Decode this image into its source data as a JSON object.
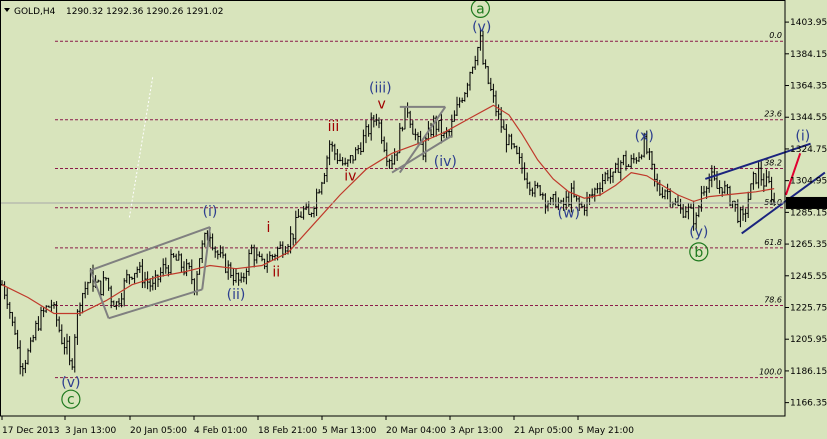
{
  "header": {
    "symbol": "GOLD,H4",
    "ohlc": "1290.32 1292.36 1290.26 1291.02"
  },
  "current_price": "1291.02",
  "colors": {
    "background": "#d8e4bc",
    "candles": "#000000",
    "moving_average": "#c0392b",
    "fib_lines": "#8b1a4a",
    "wave_blue": "#2c3e8f",
    "wave_red": "#a00000",
    "wave_green": "#1f7a1f",
    "channel_gray": "#808080",
    "triangle_blue": "#1a237e",
    "projection_red": "#e00030",
    "price_marker": "#000000"
  },
  "chart_data": {
    "type": "candlestick",
    "instrument": "GOLD",
    "timeframe": "H4",
    "yaxis": {
      "ylim": [
        1158,
        1414
      ],
      "ticks": [
        "1403.95",
        "1384.15",
        "1364.35",
        "1344.55",
        "1324.75",
        "1304.95",
        "1285.15",
        "1265.35",
        "1245.55",
        "1225.75",
        "1205.95",
        "1186.15",
        "1166.35"
      ]
    },
    "xaxis": {
      "ticks": [
        "17 Dec 2013",
        "3 Jan 13:00",
        "20 Jan 05:00",
        "4 Feb 01:00",
        "18 Feb 21:00",
        "5 Mar 13:00",
        "20 Mar 04:00",
        "3 Apr 13:00",
        "21 Apr 05:00",
        "5 May 21:00"
      ]
    },
    "fibonacci_levels": [
      {
        "label": "0.0",
        "price": 1392
      },
      {
        "label": "23.6",
        "price": 1343
      },
      {
        "label": "38.2",
        "price": 1312.5
      },
      {
        "label": "50.0",
        "price": 1288
      },
      {
        "label": "61.8",
        "price": 1263
      },
      {
        "label": "78.6",
        "price": 1227
      },
      {
        "label": "100.0",
        "price": 1182
      }
    ],
    "price_path": [
      [
        0,
        1240
      ],
      [
        4,
        1232
      ],
      [
        8,
        1215
      ],
      [
        10,
        1212
      ],
      [
        12,
        1200
      ],
      [
        15,
        1190
      ],
      [
        18,
        1194
      ],
      [
        22,
        1200
      ],
      [
        26,
        1213
      ],
      [
        30,
        1220
      ],
      [
        34,
        1225
      ],
      [
        38,
        1228
      ],
      [
        42,
        1218
      ],
      [
        46,
        1206
      ],
      [
        50,
        1200
      ],
      [
        53,
        1185
      ],
      [
        56,
        1210
      ],
      [
        60,
        1232
      ],
      [
        64,
        1238
      ],
      [
        68,
        1245
      ],
      [
        72,
        1240
      ],
      [
        76,
        1238
      ],
      [
        80,
        1244
      ],
      [
        84,
        1232
      ],
      [
        88,
        1228
      ],
      [
        92,
        1236
      ],
      [
        96,
        1244
      ],
      [
        100,
        1248
      ],
      [
        104,
        1250
      ],
      [
        108,
        1245
      ],
      [
        112,
        1242
      ],
      [
        116,
        1238
      ],
      [
        120,
        1244
      ],
      [
        124,
        1250
      ],
      [
        128,
        1252
      ],
      [
        132,
        1256
      ],
      [
        136,
        1254
      ],
      [
        140,
        1250
      ],
      [
        144,
        1248
      ],
      [
        148,
        1240
      ],
      [
        152,
        1258
      ],
      [
        156,
        1268
      ],
      [
        160,
        1273
      ],
      [
        164,
        1262
      ],
      [
        168,
        1256
      ],
      [
        172,
        1252
      ],
      [
        176,
        1248
      ],
      [
        180,
        1244
      ],
      [
        184,
        1240
      ],
      [
        188,
        1252
      ],
      [
        192,
        1262
      ],
      [
        196,
        1256
      ],
      [
        200,
        1252
      ],
      [
        204,
        1256
      ],
      [
        208,
        1258
      ],
      [
        212,
        1262
      ],
      [
        216,
        1264
      ],
      [
        220,
        1268
      ],
      [
        224,
        1272
      ],
      [
        228,
        1282
      ],
      [
        232,
        1286
      ],
      [
        236,
        1282
      ],
      [
        240,
        1292
      ],
      [
        244,
        1302
      ],
      [
        248,
        1312
      ],
      [
        252,
        1328
      ],
      [
        256,
        1322
      ],
      [
        260,
        1318
      ],
      [
        264,
        1313
      ],
      [
        268,
        1318
      ],
      [
        272,
        1322
      ],
      [
        276,
        1328
      ],
      [
        280,
        1334
      ],
      [
        284,
        1340
      ],
      [
        288,
        1346
      ],
      [
        292,
        1334
      ],
      [
        296,
        1322
      ],
      [
        300,
        1318
      ],
      [
        304,
        1326
      ],
      [
        308,
        1342
      ],
      [
        312,
        1350
      ],
      [
        316,
        1338
      ],
      [
        320,
        1328
      ],
      [
        324,
        1324
      ],
      [
        328,
        1333
      ],
      [
        332,
        1341
      ],
      [
        336,
        1338
      ],
      [
        340,
        1332
      ],
      [
        344,
        1335
      ],
      [
        348,
        1344
      ],
      [
        352,
        1355
      ],
      [
        356,
        1362
      ],
      [
        360,
        1374
      ],
      [
        364,
        1384
      ],
      [
        368,
        1392
      ],
      [
        370,
        1378
      ],
      [
        374,
        1366
      ],
      [
        378,
        1355
      ],
      [
        382,
        1344
      ],
      [
        386,
        1335
      ],
      [
        390,
        1328
      ],
      [
        394,
        1322
      ],
      [
        398,
        1316
      ],
      [
        402,
        1310
      ],
      [
        406,
        1304
      ],
      [
        410,
        1298
      ],
      [
        414,
        1300
      ],
      [
        418,
        1294
      ],
      [
        422,
        1290
      ],
      [
        426,
        1293
      ],
      [
        430,
        1288
      ],
      [
        434,
        1292
      ],
      [
        438,
        1296
      ],
      [
        442,
        1291
      ],
      [
        446,
        1288
      ],
      [
        450,
        1292
      ],
      [
        454,
        1296
      ],
      [
        458,
        1302
      ],
      [
        462,
        1306
      ],
      [
        466,
        1310
      ],
      [
        470,
        1306
      ],
      [
        474,
        1315
      ],
      [
        478,
        1318
      ],
      [
        482,
        1314
      ],
      [
        486,
        1318
      ],
      [
        490,
        1322
      ],
      [
        494,
        1328
      ],
      [
        498,
        1318
      ],
      [
        502,
        1304
      ],
      [
        506,
        1298
      ],
      [
        510,
        1300
      ],
      [
        514,
        1296
      ],
      [
        518,
        1290
      ],
      [
        522,
        1286
      ],
      [
        526,
        1288
      ],
      [
        530,
        1284
      ],
      [
        534,
        1280
      ],
      [
        538,
        1298
      ],
      [
        542,
        1305
      ],
      [
        546,
        1306
      ],
      [
        550,
        1300
      ],
      [
        554,
        1302
      ],
      [
        558,
        1296
      ],
      [
        562,
        1292
      ],
      [
        566,
        1284
      ],
      [
        570,
        1280
      ],
      [
        574,
        1294
      ],
      [
        578,
        1305
      ],
      [
        582,
        1310
      ],
      [
        586,
        1304
      ],
      [
        590,
        1302
      ],
      [
        594,
        1291
      ]
    ],
    "moving_average": [
      [
        0,
        1240
      ],
      [
        20,
        1232
      ],
      [
        40,
        1222
      ],
      [
        60,
        1222
      ],
      [
        80,
        1230
      ],
      [
        100,
        1240
      ],
      [
        120,
        1245
      ],
      [
        140,
        1248
      ],
      [
        160,
        1252
      ],
      [
        180,
        1250
      ],
      [
        200,
        1252
      ],
      [
        220,
        1260
      ],
      [
        240,
        1278
      ],
      [
        260,
        1296
      ],
      [
        280,
        1312
      ],
      [
        300,
        1322
      ],
      [
        320,
        1328
      ],
      [
        340,
        1335
      ],
      [
        360,
        1344
      ],
      [
        378,
        1352
      ],
      [
        390,
        1346
      ],
      [
        400,
        1334
      ],
      [
        412,
        1318
      ],
      [
        424,
        1306
      ],
      [
        436,
        1298
      ],
      [
        448,
        1294
      ],
      [
        460,
        1296
      ],
      [
        472,
        1302
      ],
      [
        484,
        1310
      ],
      [
        496,
        1308
      ],
      [
        508,
        1302
      ],
      [
        520,
        1296
      ],
      [
        532,
        1292
      ],
      [
        544,
        1295
      ],
      [
        556,
        1296
      ],
      [
        568,
        1297
      ],
      [
        580,
        1298
      ],
      [
        594,
        1300
      ]
    ],
    "wave_labels": [
      {
        "text": "(v)",
        "group": "blue",
        "bar": 53,
        "price": 1176,
        "pos": "below"
      },
      {
        "text": "c",
        "group": "green-circle",
        "bar": 53,
        "price": 1166,
        "pos": "below"
      },
      {
        "text": "(i)",
        "group": "blue",
        "bar": 160,
        "price": 1283,
        "pos": "above"
      },
      {
        "text": "(ii)",
        "group": "blue",
        "bar": 180,
        "price": 1231,
        "pos": "below"
      },
      {
        "text": "i",
        "group": "red",
        "bar": 205,
        "price": 1273,
        "pos": "above"
      },
      {
        "text": "ii",
        "group": "red",
        "bar": 211,
        "price": 1245,
        "pos": "below"
      },
      {
        "text": "iii",
        "group": "red",
        "bar": 255,
        "price": 1336,
        "pos": "above"
      },
      {
        "text": "iv",
        "group": "red",
        "bar": 268,
        "price": 1305,
        "pos": "below"
      },
      {
        "text": "(iii)",
        "group": "blue",
        "bar": 291,
        "price": 1360,
        "pos": "above"
      },
      {
        "text": "v",
        "group": "red",
        "bar": 292,
        "price": 1350,
        "pos": "above"
      },
      {
        "text": "(iv)",
        "group": "blue",
        "bar": 341,
        "price": 1314,
        "pos": "below"
      },
      {
        "text": "(v)",
        "group": "blue",
        "bar": 369,
        "price": 1398,
        "pos": "above"
      },
      {
        "text": "a",
        "group": "green-circle",
        "bar": 368,
        "price": 1410,
        "pos": "above"
      },
      {
        "text": "(w)",
        "group": "blue",
        "bar": 436,
        "price": 1282,
        "pos": "below"
      },
      {
        "text": "(x)",
        "group": "blue",
        "bar": 494,
        "price": 1330,
        "pos": "above"
      },
      {
        "text": "(y)",
        "group": "blue",
        "bar": 536,
        "price": 1270,
        "pos": "below"
      },
      {
        "text": "b",
        "group": "green-circle",
        "bar": 536,
        "price": 1258,
        "pos": "below"
      },
      {
        "text": "(i)",
        "group": "blue",
        "bar": 616,
        "price": 1330,
        "pos": "above"
      }
    ],
    "channel_lines": [
      {
        "name": "channel-upper",
        "from": [
          68,
          1249
        ],
        "to": [
          160,
          1276
        ]
      },
      {
        "name": "channel-lower",
        "from": [
          82,
          1219
        ],
        "to": [
          154,
          1237
        ]
      },
      {
        "name": "channel-left",
        "from": [
          68,
          1249
        ],
        "to": [
          82,
          1219
        ]
      },
      {
        "name": "channel-right",
        "from": [
          160,
          1276
        ],
        "to": [
          154,
          1237
        ]
      },
      {
        "name": "iv-upper",
        "from": [
          306,
          1310
        ],
        "to": [
          341,
          1351
        ]
      },
      {
        "name": "iv-top",
        "from": [
          306,
          1351
        ],
        "to": [
          341,
          1351
        ]
      },
      {
        "name": "iv-lower",
        "from": [
          300,
          1310
        ],
        "to": [
          346,
          1333
        ]
      }
    ],
    "triangle_lines": [
      {
        "name": "triangle-upper",
        "from": [
          541,
          1306
        ],
        "to": [
          622,
          1328
        ]
      },
      {
        "name": "triangle-lower",
        "from": [
          569,
          1272
        ],
        "to": [
          633,
          1310
        ]
      }
    ],
    "projection_line": {
      "from": [
        603,
        1296
      ],
      "to": [
        614,
        1322
      ]
    },
    "bars_per_px": 1
  }
}
